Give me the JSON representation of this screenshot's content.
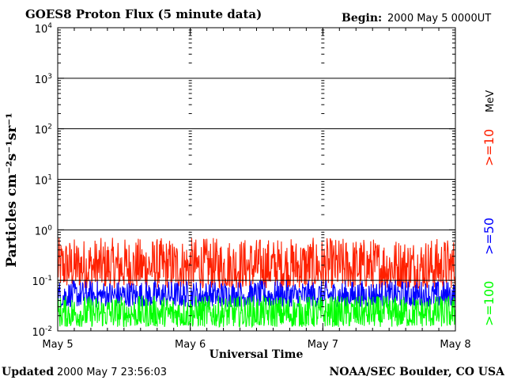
{
  "header": {
    "title": "GOES8 Proton Flux (5 minute data)",
    "begin_label": "Begin:",
    "begin_value": "2000 May 5 0000UT"
  },
  "footer": {
    "updated_label": "Updated",
    "updated_value": "2000 May  7 23:56:03",
    "credit": "NOAA/SEC Boulder, CO USA"
  },
  "chart_data": {
    "type": "line",
    "title": "GOES8 Proton Flux (5 minute data)",
    "ylabel": "Particles cm⁻²s⁻¹sr⁻¹",
    "xlabel": "Universal Time",
    "y_scale": "log",
    "ylim": [
      0.01,
      10000
    ],
    "y_ticks": [
      {
        "value": 10000,
        "base": "10",
        "exp": "4"
      },
      {
        "value": 1000,
        "base": "10",
        "exp": "3"
      },
      {
        "value": 100,
        "base": "10",
        "exp": "2"
      },
      {
        "value": 10,
        "base": "10",
        "exp": "1"
      },
      {
        "value": 1,
        "base": "10",
        "exp": "0"
      },
      {
        "value": 0.1,
        "base": "10",
        "exp": "-1"
      },
      {
        "value": 0.01,
        "base": "10",
        "exp": "-2"
      }
    ],
    "x_ticks": [
      "May 5",
      "May 6",
      "May 7",
      "May 8"
    ],
    "xlim_days": [
      0,
      3
    ],
    "grid_horizontal": true,
    "legend_placement": "right",
    "legend_unit": "MeV",
    "series": [
      {
        "name": ">=10",
        "color": "#ff2000",
        "typical_min": 0.07,
        "typical_max": 0.7
      },
      {
        "name": ">=50",
        "color": "#0000ff",
        "typical_min": 0.03,
        "typical_max": 0.1
      },
      {
        "name": ">=100",
        "color": "#00ff00",
        "typical_min": 0.012,
        "typical_max": 0.05
      }
    ]
  }
}
